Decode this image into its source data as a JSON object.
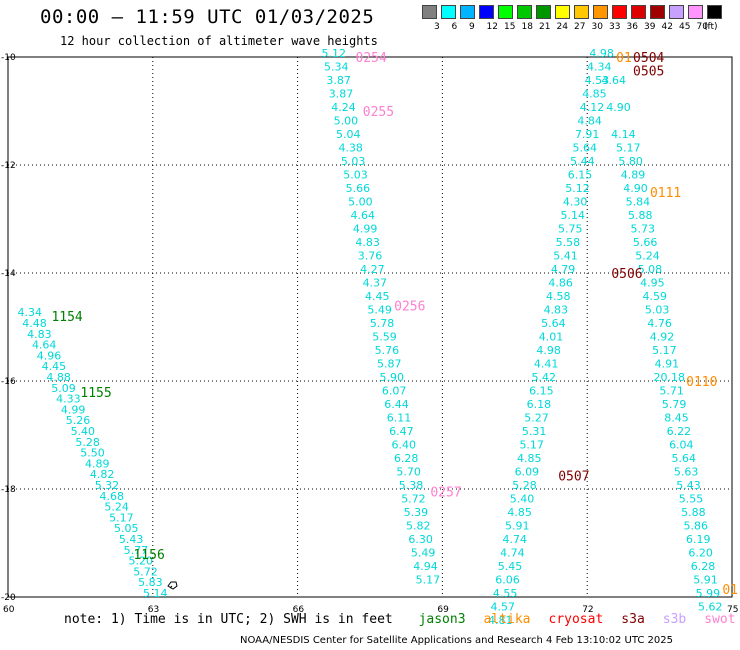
{
  "header": {
    "title": "00:00 – 11:59 UTC 01/03/2025",
    "subtitle": "12 hour collection of altimeter wave heights"
  },
  "legend": {
    "levels": [
      "3",
      "6",
      "9",
      "12",
      "15",
      "18",
      "21",
      "24",
      "27",
      "30",
      "33",
      "36",
      "39",
      "42",
      "45",
      "70"
    ],
    "unit": "(ft)",
    "colors": [
      "#808080",
      "#00ffff",
      "#00b4ff",
      "#0000ff",
      "#00ff00",
      "#00c800",
      "#009600",
      "#ffff00",
      "#ffc800",
      "#ff9600",
      "#ff0000",
      "#dc0000",
      "#a00000",
      "#c8a0ff",
      "#ff96ff",
      "#000000"
    ]
  },
  "map": {
    "lat_labels": [
      "-10",
      "-12",
      "-14",
      "-16",
      "-18",
      "-20"
    ],
    "lon_labels": [
      "60",
      "63",
      "66",
      "69",
      "72",
      "75"
    ]
  },
  "tracks": [
    {
      "color": "#00d8d8",
      "points": [
        {
          "lon": 60.45,
          "lat": -14.8,
          "label": "4.34"
        },
        {
          "lon": 60.55,
          "lat": -15.0,
          "label": "4.48"
        },
        {
          "lon": 60.65,
          "lat": -15.2,
          "label": "4.83"
        },
        {
          "lon": 60.75,
          "lat": -15.4,
          "label": "4.64"
        },
        {
          "lon": 60.85,
          "lat": -15.6,
          "label": "4.96"
        },
        {
          "lon": 60.95,
          "lat": -15.8,
          "label": "4.45"
        },
        {
          "lon": 61.05,
          "lat": -16.0,
          "label": "4.88"
        },
        {
          "lon": 61.15,
          "lat": -16.2,
          "label": "5.09"
        },
        {
          "lon": 61.25,
          "lat": -16.4,
          "label": "4.33"
        },
        {
          "lon": 61.35,
          "lat": -16.6,
          "label": "4.99"
        },
        {
          "lon": 61.45,
          "lat": -16.8,
          "label": "5.26"
        },
        {
          "lon": 61.55,
          "lat": -17.0,
          "label": "5.40"
        },
        {
          "lon": 61.65,
          "lat": -17.2,
          "label": "5.28"
        },
        {
          "lon": 61.75,
          "lat": -17.4,
          "label": "5.50"
        },
        {
          "lon": 61.85,
          "lat": -17.6,
          "label": "4.89"
        },
        {
          "lon": 61.95,
          "lat": -17.8,
          "label": "4.82"
        },
        {
          "lon": 62.05,
          "lat": -18.0,
          "label": "5.32"
        },
        {
          "lon": 62.15,
          "lat": -18.2,
          "label": "4.68"
        },
        {
          "lon": 62.25,
          "lat": -18.4,
          "label": "5.24"
        },
        {
          "lon": 62.35,
          "lat": -18.6,
          "label": "5.17"
        },
        {
          "lon": 62.45,
          "lat": -18.8,
          "label": "5.05"
        },
        {
          "lon": 62.55,
          "lat": -19.0,
          "label": "5.43"
        },
        {
          "lon": 62.65,
          "lat": -19.2,
          "label": "5.77"
        },
        {
          "lon": 62.75,
          "lat": -19.4,
          "label": "5.20"
        },
        {
          "lon": 62.85,
          "lat": -19.6,
          "label": "5.72"
        },
        {
          "lon": 62.95,
          "lat": -19.8,
          "label": "5.83"
        },
        {
          "lon": 63.05,
          "lat": -20.0,
          "label": "5.14"
        }
      ]
    },
    {
      "color": "#00d8d8",
      "points": [
        {
          "lon": 66.75,
          "lat": -10.0,
          "label": "5.12"
        },
        {
          "lon": 66.8,
          "lat": -10.25,
          "label": "5.34"
        },
        {
          "lon": 66.85,
          "lat": -10.5,
          "label": "3.87"
        },
        {
          "lon": 66.9,
          "lat": -10.75,
          "label": "3.87"
        },
        {
          "lon": 66.95,
          "lat": -11.0,
          "label": "4.24"
        },
        {
          "lon": 67.0,
          "lat": -11.25,
          "label": "5.00"
        },
        {
          "lon": 67.05,
          "lat": -11.5,
          "label": "5.04"
        },
        {
          "lon": 67.1,
          "lat": -11.75,
          "label": "4.38"
        },
        {
          "lon": 67.15,
          "lat": -12.0,
          "label": "5.03"
        },
        {
          "lon": 67.2,
          "lat": -12.25,
          "label": "5.03"
        },
        {
          "lon": 67.25,
          "lat": -12.5,
          "label": "5.66"
        },
        {
          "lon": 67.3,
          "lat": -12.75,
          "label": "5.00"
        },
        {
          "lon": 67.35,
          "lat": -13.0,
          "label": "4.64"
        },
        {
          "lon": 67.4,
          "lat": -13.25,
          "label": "4.99"
        },
        {
          "lon": 67.45,
          "lat": -13.5,
          "label": "4.83"
        },
        {
          "lon": 67.5,
          "lat": -13.75,
          "label": "3.76"
        },
        {
          "lon": 67.55,
          "lat": -14.0,
          "label": "4.27"
        },
        {
          "lon": 67.6,
          "lat": -14.25,
          "label": "4.37"
        },
        {
          "lon": 67.65,
          "lat": -14.5,
          "label": "4.45"
        },
        {
          "lon": 67.7,
          "lat": -14.75,
          "label": "5.49"
        },
        {
          "lon": 67.75,
          "lat": -15.0,
          "label": "5.78"
        },
        {
          "lon": 67.8,
          "lat": -15.25,
          "label": "5.59"
        },
        {
          "lon": 67.85,
          "lat": -15.5,
          "label": "5.76"
        },
        {
          "lon": 67.9,
          "lat": -15.75,
          "label": "5.87"
        },
        {
          "lon": 67.95,
          "lat": -16.0,
          "label": "5.90"
        },
        {
          "lon": 68.0,
          "lat": -16.25,
          "label": "6.07"
        },
        {
          "lon": 68.05,
          "lat": -16.5,
          "label": "6.44"
        },
        {
          "lon": 68.1,
          "lat": -16.75,
          "label": "6.11"
        },
        {
          "lon": 68.15,
          "lat": -17.0,
          "label": "6.47"
        },
        {
          "lon": 68.2,
          "lat": -17.25,
          "label": "6.40"
        },
        {
          "lon": 68.25,
          "lat": -17.5,
          "label": "6.28"
        },
        {
          "lon": 68.3,
          "lat": -17.75,
          "label": "5.70"
        },
        {
          "lon": 68.35,
          "lat": -18.0,
          "label": "5.38"
        },
        {
          "lon": 68.4,
          "lat": -18.25,
          "label": "5.72"
        },
        {
          "lon": 68.45,
          "lat": -18.5,
          "label": "5.39"
        },
        {
          "lon": 68.5,
          "lat": -18.75,
          "label": "5.82"
        },
        {
          "lon": 68.55,
          "lat": -19.0,
          "label": "6.30"
        },
        {
          "lon": 68.6,
          "lat": -19.25,
          "label": "5.49"
        },
        {
          "lon": 68.65,
          "lat": -19.5,
          "label": "4.94"
        },
        {
          "lon": 68.7,
          "lat": -19.75,
          "label": "5.17"
        }
      ]
    },
    {
      "color": "#00d8d8",
      "points": [
        {
          "lon": 72.3,
          "lat": -10.0,
          "label": "4.98"
        },
        {
          "lon": 72.25,
          "lat": -10.25,
          "label": "4.34"
        },
        {
          "lon": 72.2,
          "lat": -10.5,
          "label": "4.53"
        },
        {
          "lon": 72.15,
          "lat": -10.75,
          "label": "4.85"
        },
        {
          "lon": 72.1,
          "lat": -11.0,
          "label": "4.12"
        },
        {
          "lon": 72.05,
          "lat": -11.25,
          "label": "4.84"
        },
        {
          "lon": 72.0,
          "lat": -11.5,
          "label": "7.91"
        },
        {
          "lon": 71.95,
          "lat": -11.75,
          "label": "5.64"
        },
        {
          "lon": 71.9,
          "lat": -12.0,
          "label": "5.44"
        },
        {
          "lon": 71.85,
          "lat": -12.25,
          "label": "6.15"
        },
        {
          "lon": 71.8,
          "lat": -12.5,
          "label": "5.12"
        },
        {
          "lon": 71.75,
          "lat": -12.75,
          "label": "4.30"
        },
        {
          "lon": 71.7,
          "lat": -13.0,
          "label": "5.14"
        },
        {
          "lon": 71.65,
          "lat": -13.25,
          "label": "5.75"
        },
        {
          "lon": 71.6,
          "lat": -13.5,
          "label": "5.58"
        },
        {
          "lon": 71.55,
          "lat": -13.75,
          "label": "5.41"
        },
        {
          "lon": 71.5,
          "lat": -14.0,
          "label": "4.79"
        },
        {
          "lon": 71.45,
          "lat": -14.25,
          "label": "4.86"
        },
        {
          "lon": 71.4,
          "lat": -14.5,
          "label": "4.58"
        },
        {
          "lon": 71.35,
          "lat": -14.75,
          "label": "4.83"
        },
        {
          "lon": 71.3,
          "lat": -15.0,
          "label": "5.64"
        },
        {
          "lon": 71.25,
          "lat": -15.25,
          "label": "4.01"
        },
        {
          "lon": 71.2,
          "lat": -15.5,
          "label": "4.98"
        },
        {
          "lon": 71.15,
          "lat": -15.75,
          "label": "4.41"
        },
        {
          "lon": 71.1,
          "lat": -16.0,
          "label": "5.42"
        },
        {
          "lon": 71.05,
          "lat": -16.25,
          "label": "6.15"
        },
        {
          "lon": 71.0,
          "lat": -16.5,
          "label": "6.18"
        },
        {
          "lon": 70.95,
          "lat": -16.75,
          "label": "5.27"
        },
        {
          "lon": 70.9,
          "lat": -17.0,
          "label": "5.31"
        },
        {
          "lon": 70.85,
          "lat": -17.25,
          "label": "5.17"
        },
        {
          "lon": 70.8,
          "lat": -17.5,
          "label": "4.85"
        },
        {
          "lon": 70.75,
          "lat": -17.75,
          "label": "6.09"
        },
        {
          "lon": 70.7,
          "lat": -18.0,
          "label": "5.28"
        },
        {
          "lon": 70.65,
          "lat": -18.25,
          "label": "5.40"
        },
        {
          "lon": 70.6,
          "lat": -18.5,
          "label": "4.85"
        },
        {
          "lon": 70.55,
          "lat": -18.75,
          "label": "5.91"
        },
        {
          "lon": 70.5,
          "lat": -19.0,
          "label": "4.74"
        },
        {
          "lon": 70.45,
          "lat": -19.25,
          "label": "4.74"
        },
        {
          "lon": 70.4,
          "lat": -19.5,
          "label": "5.45"
        },
        {
          "lon": 70.35,
          "lat": -19.75,
          "label": "6.06"
        },
        {
          "lon": 70.3,
          "lat": -20.0,
          "label": "4.55"
        },
        {
          "lon": 70.25,
          "lat": -20.25,
          "label": "4.57"
        },
        {
          "lon": 70.2,
          "lat": -20.5,
          "label": "4.81"
        }
      ]
    },
    {
      "color": "#00d8d8",
      "points": [
        {
          "lon": 72.55,
          "lat": -10.5,
          "label": "4.64"
        },
        {
          "lon": 72.65,
          "lat": -11.0,
          "label": "4.90"
        },
        {
          "lon": 72.75,
          "lat": -11.5,
          "label": "4.14"
        },
        {
          "lon": 72.85,
          "lat": -11.75,
          "label": "5.17"
        },
        {
          "lon": 72.9,
          "lat": -12.0,
          "label": "5.80"
        },
        {
          "lon": 72.95,
          "lat": -12.25,
          "label": "4.89"
        },
        {
          "lon": 73.0,
          "lat": -12.5,
          "label": "4.90"
        },
        {
          "lon": 73.05,
          "lat": -12.75,
          "label": "5.84"
        },
        {
          "lon": 73.1,
          "lat": -13.0,
          "label": "5.88"
        },
        {
          "lon": 73.15,
          "lat": -13.25,
          "label": "5.73"
        },
        {
          "lon": 73.2,
          "lat": -13.5,
          "label": "5.66"
        },
        {
          "lon": 73.25,
          "lat": -13.75,
          "label": "5.24"
        },
        {
          "lon": 73.3,
          "lat": -14.0,
          "label": "5.08"
        },
        {
          "lon": 73.35,
          "lat": -14.25,
          "label": "4.95"
        },
        {
          "lon": 73.4,
          "lat": -14.5,
          "label": "4.59"
        },
        {
          "lon": 73.45,
          "lat": -14.75,
          "label": "5.03"
        },
        {
          "lon": 73.5,
          "lat": -15.0,
          "label": "4.76"
        },
        {
          "lon": 73.55,
          "lat": -15.25,
          "label": "4.92"
        },
        {
          "lon": 73.6,
          "lat": -15.5,
          "label": "5.17"
        },
        {
          "lon": 73.65,
          "lat": -15.75,
          "label": "4.91"
        },
        {
          "lon": 73.7,
          "lat": -16.0,
          "label": "20.18"
        },
        {
          "lon": 73.75,
          "lat": -16.25,
          "label": "5.71"
        },
        {
          "lon": 73.8,
          "lat": -16.5,
          "label": "5.79"
        },
        {
          "lon": 73.85,
          "lat": -16.75,
          "label": "8.45"
        },
        {
          "lon": 73.9,
          "lat": -17.0,
          "label": "6.22"
        },
        {
          "lon": 73.95,
          "lat": -17.25,
          "label": "6.04"
        },
        {
          "lon": 74.0,
          "lat": -17.5,
          "label": "5.64"
        },
        {
          "lon": 74.05,
          "lat": -17.75,
          "label": "5.63"
        },
        {
          "lon": 74.1,
          "lat": -18.0,
          "label": "5.43"
        },
        {
          "lon": 74.15,
          "lat": -18.25,
          "label": "5.55"
        },
        {
          "lon": 74.2,
          "lat": -18.5,
          "label": "5.88"
        },
        {
          "lon": 74.25,
          "lat": -18.75,
          "label": "5.86"
        },
        {
          "lon": 74.3,
          "lat": -19.0,
          "label": "6.19"
        },
        {
          "lon": 74.35,
          "lat": -19.25,
          "label": "6.20"
        },
        {
          "lon": 74.4,
          "lat": -19.5,
          "label": "6.28"
        },
        {
          "lon": 74.45,
          "lat": -19.75,
          "label": "5.91"
        },
        {
          "lon": 74.5,
          "lat": -20.0,
          "label": "5.99"
        },
        {
          "lon": 74.55,
          "lat": -20.25,
          "label": "5.62"
        }
      ]
    }
  ],
  "pass_labels": [
    {
      "text": "1154",
      "lon": 60.9,
      "lat": -14.8,
      "color": "#008000"
    },
    {
      "text": "1155",
      "lon": 61.5,
      "lat": -16.2,
      "color": "#008000"
    },
    {
      "text": "1156",
      "lon": 62.6,
      "lat": -19.2,
      "color": "#008000"
    },
    {
      "text": "0254",
      "lon": 67.2,
      "lat": -10.0,
      "color": "#ff80d0"
    },
    {
      "text": "0255",
      "lon": 67.35,
      "lat": -11.0,
      "color": "#ff80d0"
    },
    {
      "text": "0256",
      "lon": 68.0,
      "lat": -14.6,
      "color": "#ff80d0"
    },
    {
      "text": "0257",
      "lon": 68.75,
      "lat": -18.05,
      "color": "#ff80d0"
    },
    {
      "text": "0504",
      "lon": 72.95,
      "lat": -10.0,
      "color": "#800000"
    },
    {
      "text": "0505",
      "lon": 72.95,
      "lat": -10.25,
      "color": "#800000"
    },
    {
      "text": "0506",
      "lon": 72.5,
      "lat": -14.0,
      "color": "#800000"
    },
    {
      "text": "0507",
      "lon": 71.4,
      "lat": -17.75,
      "color": "#800000"
    },
    {
      "text": "0111",
      "lon": 73.3,
      "lat": -12.5,
      "color": "#ff8c00"
    },
    {
      "text": "0110",
      "lon": 74.05,
      "lat": -16.0,
      "color": "#ff8c00"
    },
    {
      "text": "01",
      "lon": 74.8,
      "lat": -19.85,
      "color": "#ff8c00"
    },
    {
      "text": "01",
      "lon": 72.6,
      "lat": -10.0,
      "color": "#ff8c00"
    }
  ],
  "note": {
    "prefix": "note: 1) Time is in UTC; 2) SWH is in feet",
    "satellites": [
      {
        "name": "jason3",
        "color": "#008000"
      },
      {
        "name": "altika",
        "color": "#ff8c00"
      },
      {
        "name": "cryosat",
        "color": "#ff0000"
      },
      {
        "name": "s3a",
        "color": "#800000"
      },
      {
        "name": "s3b",
        "color": "#c8a0ff"
      },
      {
        "name": "swot",
        "color": "#ff80d0"
      }
    ]
  },
  "credit": "NOAA/NESDIS Center for Satellite Applications and Research    4 Feb 13:10:02 UTC 2025"
}
